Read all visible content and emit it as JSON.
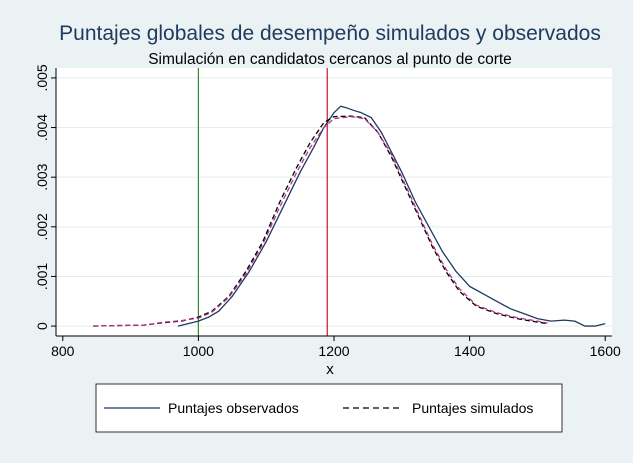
{
  "chart_data": {
    "type": "line",
    "title": "Puntajes globales de desempeño simulados y observados",
    "subtitle": "Simulación en candidatos cercanos al punto de corte",
    "xlabel": "x",
    "ylabel": "",
    "xlim": [
      790,
      1610
    ],
    "ylim": [
      -0.0002,
      0.0052
    ],
    "x_ticks": [
      800,
      1000,
      1200,
      1400,
      1600
    ],
    "x_tick_labels": [
      "800",
      "1000",
      "1200",
      "1400",
      "1600"
    ],
    "y_ticks": [
      0,
      0.001,
      0.002,
      0.003,
      0.004,
      0.005
    ],
    "y_tick_labels": [
      "0",
      ".001",
      ".002",
      ".003",
      ".004",
      ".005"
    ],
    "grid": "horizontal",
    "vlines": [
      {
        "x": 1000,
        "color": "#2e8b2e"
      },
      {
        "x": 1190,
        "color": "#c8102e"
      }
    ],
    "legend": {
      "position": "bottom"
    },
    "series": [
      {
        "name": "Puntajes observados",
        "style": "solid",
        "color": "#1e3a5f",
        "points": [
          [
            970,
            0.0
          ],
          [
            985,
            5e-05
          ],
          [
            1000,
            0.0001
          ],
          [
            1015,
            0.00018
          ],
          [
            1030,
            0.0003
          ],
          [
            1050,
            0.0006
          ],
          [
            1075,
            0.0011
          ],
          [
            1100,
            0.0017
          ],
          [
            1125,
            0.0024
          ],
          [
            1150,
            0.0031
          ],
          [
            1170,
            0.0036
          ],
          [
            1185,
            0.004
          ],
          [
            1200,
            0.0043
          ],
          [
            1210,
            0.00443
          ],
          [
            1218,
            0.0044
          ],
          [
            1228,
            0.00435
          ],
          [
            1240,
            0.0043
          ],
          [
            1255,
            0.0042
          ],
          [
            1270,
            0.0039
          ],
          [
            1285,
            0.0035
          ],
          [
            1300,
            0.0031
          ],
          [
            1320,
            0.0025
          ],
          [
            1340,
            0.002
          ],
          [
            1360,
            0.0015
          ],
          [
            1380,
            0.0011
          ],
          [
            1400,
            0.0008
          ],
          [
            1420,
            0.00065
          ],
          [
            1440,
            0.0005
          ],
          [
            1460,
            0.00035
          ],
          [
            1480,
            0.00025
          ],
          [
            1500,
            0.00015
          ],
          [
            1520,
            0.0001
          ],
          [
            1540,
            0.00012
          ],
          [
            1555,
            0.0001
          ],
          [
            1570,
            0.0
          ],
          [
            1585,
            0.0
          ],
          [
            1600,
            5e-05
          ]
        ]
      },
      {
        "name": "Puntajes simulados",
        "style": "dashed",
        "color": "#000000",
        "points": [
          [
            845,
            0.0
          ],
          [
            880,
            1e-05
          ],
          [
            920,
            2e-05
          ],
          [
            950,
            7e-05
          ],
          [
            975,
            0.0001
          ],
          [
            1000,
            0.00018
          ],
          [
            1020,
            0.0003
          ],
          [
            1045,
            0.0006
          ],
          [
            1070,
            0.0011
          ],
          [
            1095,
            0.0017
          ],
          [
            1120,
            0.0025
          ],
          [
            1145,
            0.0032
          ],
          [
            1165,
            0.0037
          ],
          [
            1185,
            0.0041
          ],
          [
            1200,
            0.00422
          ],
          [
            1225,
            0.00423
          ],
          [
            1245,
            0.0042
          ],
          [
            1265,
            0.0039
          ],
          [
            1285,
            0.0034
          ],
          [
            1305,
            0.0028
          ],
          [
            1325,
            0.0022
          ],
          [
            1345,
            0.0016
          ],
          [
            1365,
            0.0011
          ],
          [
            1385,
            0.0007
          ],
          [
            1410,
            0.0004
          ],
          [
            1440,
            0.00025
          ],
          [
            1470,
            0.00015
          ],
          [
            1500,
            8e-05
          ],
          [
            1515,
            5e-05
          ]
        ]
      },
      {
        "name": "",
        "style": "dashed",
        "color": "#b5338a",
        "points": [
          [
            845,
            0.0
          ],
          [
            880,
            1e-05
          ],
          [
            920,
            2e-05
          ],
          [
            950,
            8e-05
          ],
          [
            975,
            0.00011
          ],
          [
            1000,
            0.00016
          ],
          [
            1020,
            0.00028
          ],
          [
            1045,
            0.00058
          ],
          [
            1070,
            0.00105
          ],
          [
            1095,
            0.00165
          ],
          [
            1120,
            0.0024
          ],
          [
            1145,
            0.0031
          ],
          [
            1165,
            0.0036
          ],
          [
            1185,
            0.004
          ],
          [
            1200,
            0.00418
          ],
          [
            1225,
            0.00422
          ],
          [
            1245,
            0.00418
          ],
          [
            1265,
            0.0039
          ],
          [
            1285,
            0.00345
          ],
          [
            1305,
            0.00285
          ],
          [
            1325,
            0.00225
          ],
          [
            1345,
            0.00165
          ],
          [
            1365,
            0.00115
          ],
          [
            1385,
            0.00075
          ],
          [
            1410,
            0.00042
          ],
          [
            1440,
            0.00027
          ],
          [
            1470,
            0.00017
          ],
          [
            1500,
            0.0001
          ],
          [
            1515,
            6e-05
          ]
        ]
      }
    ]
  }
}
